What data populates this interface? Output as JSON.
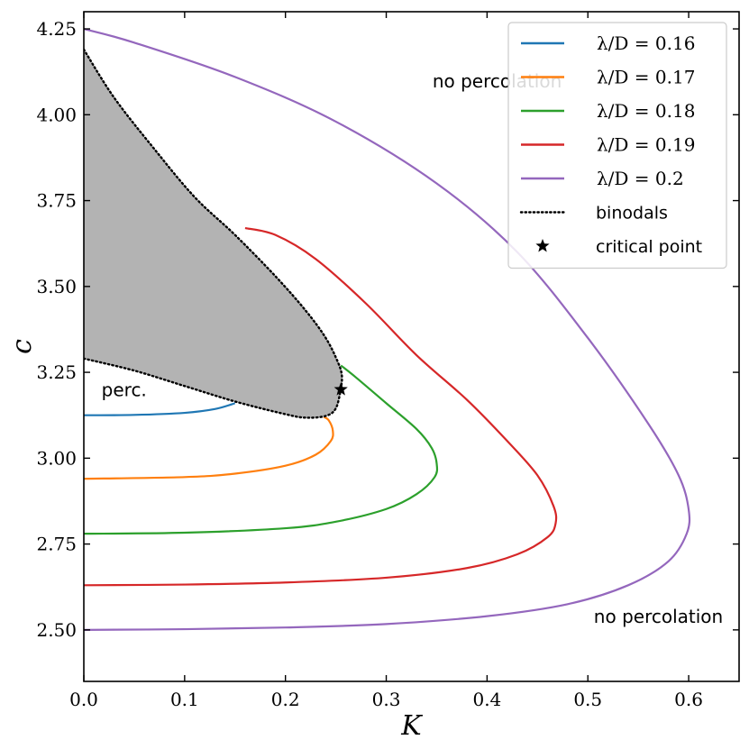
{
  "chart_data": {
    "type": "line",
    "xlabel": "K",
    "ylabel": "c",
    "xlim": [
      0.0,
      0.65
    ],
    "ylim": [
      2.35,
      4.3
    ],
    "x_ticks": [
      "0.0",
      "0.1",
      "0.2",
      "0.3",
      "0.4",
      "0.5",
      "0.6"
    ],
    "y_ticks": [
      "2.50",
      "2.75",
      "3.00",
      "3.25",
      "3.50",
      "3.75",
      "4.00",
      "4.25"
    ],
    "grid": false,
    "legend_position": "top-right",
    "series": [
      {
        "name": "λ/D = 0.16",
        "color": "#1f77b4",
        "points": [
          [
            0.0,
            3.125
          ],
          [
            0.05,
            3.126
          ],
          [
            0.1,
            3.132
          ],
          [
            0.13,
            3.143
          ],
          [
            0.15,
            3.16
          ]
        ]
      },
      {
        "name": "λ/D = 0.17",
        "color": "#ff7f0e",
        "points": [
          [
            0.0,
            2.94
          ],
          [
            0.1,
            2.945
          ],
          [
            0.15,
            2.955
          ],
          [
            0.2,
            2.978
          ],
          [
            0.23,
            3.01
          ],
          [
            0.245,
            3.05
          ],
          [
            0.247,
            3.08
          ],
          [
            0.243,
            3.11
          ],
          [
            0.238,
            3.12
          ]
        ]
      },
      {
        "name": "λ/D = 0.18",
        "color": "#2ca02c",
        "points": [
          [
            0.0,
            2.78
          ],
          [
            0.1,
            2.783
          ],
          [
            0.2,
            2.796
          ],
          [
            0.25,
            2.815
          ],
          [
            0.3,
            2.852
          ],
          [
            0.33,
            2.895
          ],
          [
            0.348,
            2.945
          ],
          [
            0.35,
            2.985
          ],
          [
            0.345,
            3.03
          ],
          [
            0.33,
            3.085
          ],
          [
            0.3,
            3.16
          ],
          [
            0.27,
            3.235
          ],
          [
            0.255,
            3.27
          ]
        ]
      },
      {
        "name": "λ/D = 0.19",
        "color": "#d62728",
        "points": [
          [
            0.0,
            2.63
          ],
          [
            0.1,
            2.632
          ],
          [
            0.2,
            2.638
          ],
          [
            0.3,
            2.652
          ],
          [
            0.38,
            2.68
          ],
          [
            0.43,
            2.72
          ],
          [
            0.46,
            2.77
          ],
          [
            0.468,
            2.81
          ],
          [
            0.466,
            2.86
          ],
          [
            0.45,
            2.95
          ],
          [
            0.42,
            3.05
          ],
          [
            0.38,
            3.17
          ],
          [
            0.33,
            3.3
          ],
          [
            0.28,
            3.45
          ],
          [
            0.23,
            3.58
          ],
          [
            0.19,
            3.65
          ],
          [
            0.16,
            3.67
          ]
        ]
      },
      {
        "name": "λ/D = 0.2",
        "color": "#9467bd",
        "points": [
          [
            0.0,
            2.5
          ],
          [
            0.1,
            2.502
          ],
          [
            0.2,
            2.507
          ],
          [
            0.3,
            2.517
          ],
          [
            0.4,
            2.54
          ],
          [
            0.48,
            2.575
          ],
          [
            0.54,
            2.63
          ],
          [
            0.58,
            2.7
          ],
          [
            0.598,
            2.78
          ],
          [
            0.6,
            2.85
          ],
          [
            0.59,
            2.95
          ],
          [
            0.56,
            3.1
          ],
          [
            0.5,
            3.35
          ],
          [
            0.43,
            3.6
          ],
          [
            0.35,
            3.8
          ],
          [
            0.25,
            3.98
          ],
          [
            0.15,
            4.11
          ],
          [
            0.05,
            4.21
          ],
          [
            0.0,
            4.25
          ]
        ]
      }
    ],
    "binodal": {
      "name": "binodals",
      "color": "#000000",
      "upper_branch": [
        [
          0.0,
          4.19
        ],
        [
          0.03,
          4.05
        ],
        [
          0.07,
          3.9
        ],
        [
          0.11,
          3.76
        ],
        [
          0.15,
          3.65
        ],
        [
          0.19,
          3.53
        ],
        [
          0.22,
          3.43
        ],
        [
          0.24,
          3.35
        ],
        [
          0.252,
          3.28
        ],
        [
          0.256,
          3.24
        ],
        [
          0.255,
          3.2
        ]
      ],
      "lower_branch": [
        [
          0.0,
          3.29
        ],
        [
          0.05,
          3.255
        ],
        [
          0.1,
          3.21
        ],
        [
          0.15,
          3.165
        ],
        [
          0.2,
          3.128
        ],
        [
          0.22,
          3.118
        ],
        [
          0.24,
          3.123
        ],
        [
          0.25,
          3.145
        ],
        [
          0.255,
          3.2
        ]
      ],
      "fill_color": "#b3b3b3"
    },
    "critical_point": {
      "name": "critical point",
      "x": 0.255,
      "y": 3.2
    },
    "annotations": [
      {
        "text": "no percolation",
        "x": 0.41,
        "y": 4.08
      },
      {
        "text": "no percolation",
        "x": 0.57,
        "y": 2.52
      },
      {
        "text": "perc.",
        "x": 0.04,
        "y": 3.18
      }
    ],
    "legend_entries": [
      {
        "label": "λ/D = 0.16",
        "color": "#1f77b4",
        "style": "line"
      },
      {
        "label": "λ/D = 0.17",
        "color": "#ff7f0e",
        "style": "line"
      },
      {
        "label": "λ/D = 0.18",
        "color": "#2ca02c",
        "style": "line"
      },
      {
        "label": "λ/D = 0.19",
        "color": "#d62728",
        "style": "line"
      },
      {
        "label": "λ/D = 0.2",
        "color": "#9467bd",
        "style": "line"
      },
      {
        "label": "binodals",
        "color": "#000000",
        "style": "dotted"
      },
      {
        "label": "critical point",
        "color": "#000000",
        "style": "star"
      }
    ]
  }
}
